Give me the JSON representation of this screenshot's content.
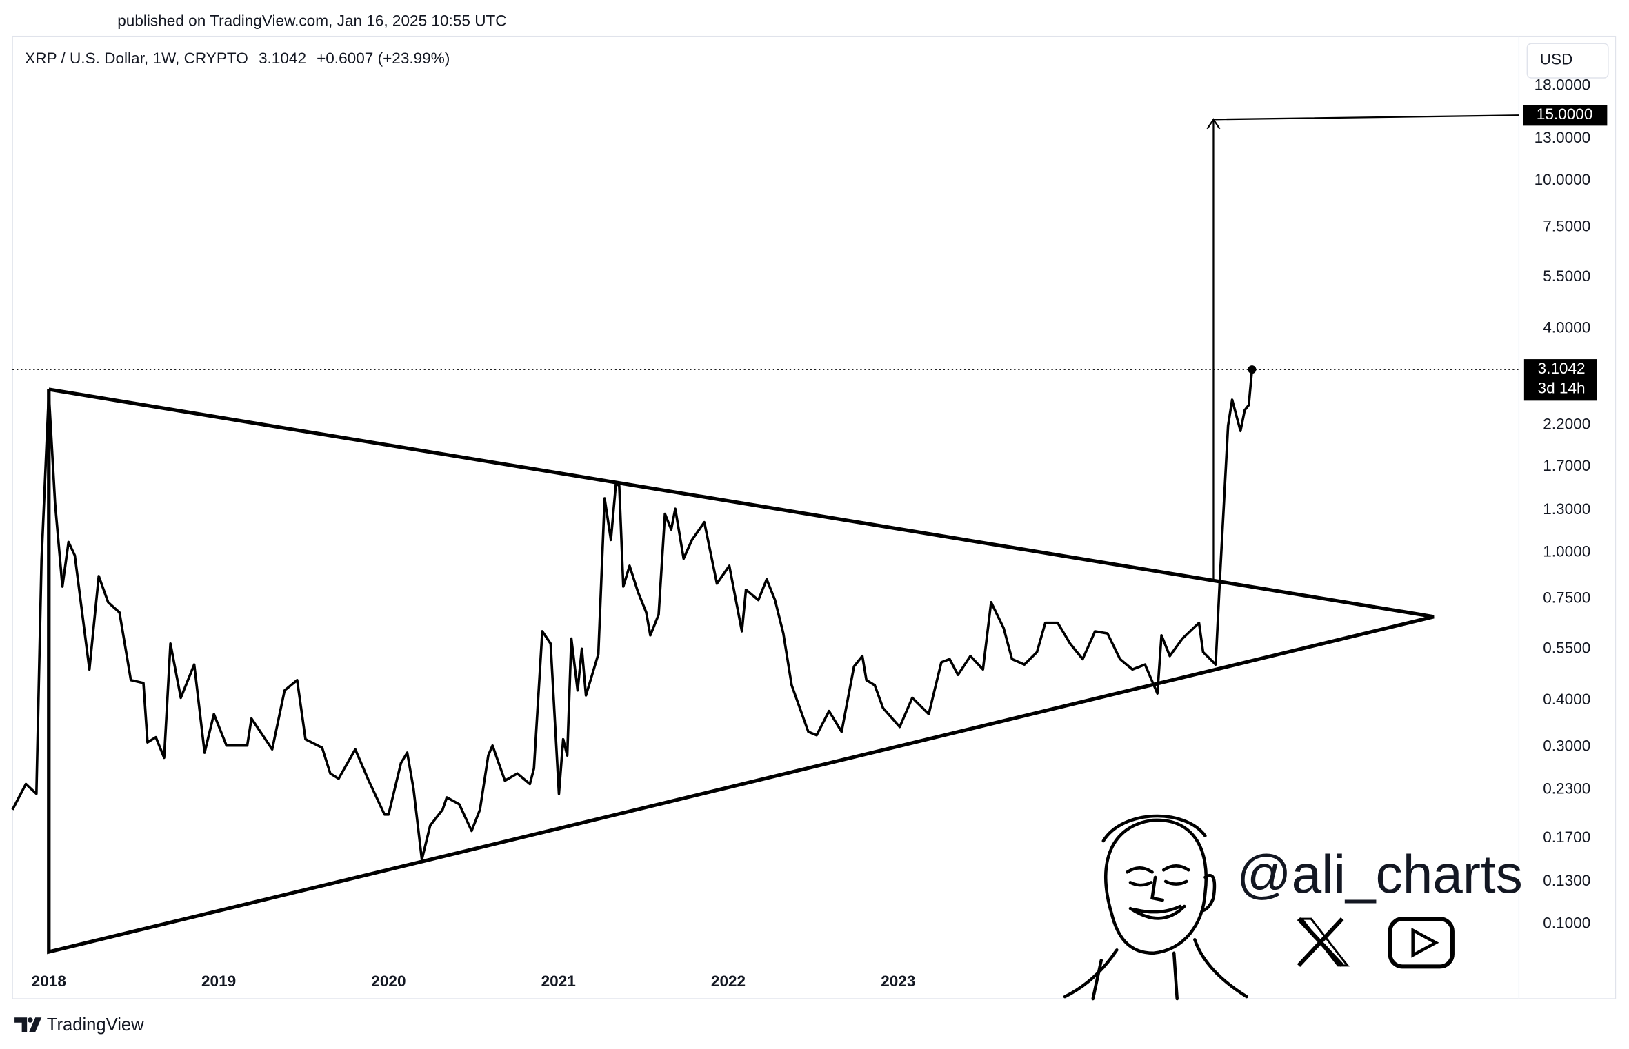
{
  "published": "published on TradingView.com, Jan 16, 2025 10:55 UTC",
  "brand": "TradingView",
  "watermark": "@ali_charts",
  "chart_data": {
    "type": "line",
    "symbol": "XRP / U.S. Dollar, 1W, CRYPTO",
    "change": "+0.6007 (+23.99%)",
    "currency": "USD",
    "countdown": "3d 14h",
    "log_scale": true,
    "grid": false,
    "xlim": [
      2017.786,
      2026.654
    ],
    "ylim": [
      0.0629,
      24.0
    ],
    "xticks": [
      2018,
      2019,
      2020,
      2021,
      2022,
      2023
    ],
    "yticks": [
      {
        "value": 0.1,
        "label": "0.1000"
      },
      {
        "value": 0.13,
        "label": "0.1300"
      },
      {
        "value": 0.17,
        "label": "0.1700"
      },
      {
        "value": 0.23,
        "label": "0.2300"
      },
      {
        "value": 0.3,
        "label": "0.3000"
      },
      {
        "value": 0.4,
        "label": "0.4000"
      },
      {
        "value": 0.55,
        "label": "0.5500"
      },
      {
        "value": 0.75,
        "label": "0.7500"
      },
      {
        "value": 1,
        "label": "1.0000"
      },
      {
        "value": 1.3,
        "label": "1.3000"
      },
      {
        "value": 1.7,
        "label": "1.7000"
      },
      {
        "value": 2.2,
        "label": "2.2000"
      },
      {
        "value": 4,
        "label": "4.0000"
      },
      {
        "value": 5.5,
        "label": "5.5000"
      },
      {
        "value": 7.5,
        "label": "7.5000"
      },
      {
        "value": 10,
        "label": "10.0000"
      },
      {
        "value": 13,
        "label": "13.0000"
      },
      {
        "value": 18,
        "label": "18.0000"
      }
    ],
    "series": [
      {
        "name": "XRP / U.S. Dollar",
        "color": "#000000",
        "x": [
          2017.786,
          2017.865,
          2017.927,
          2017.957,
          2018.0,
          2018.037,
          2018.08,
          2018.116,
          2018.153,
          2018.239,
          2018.294,
          2018.349,
          2018.416,
          2018.483,
          2018.557,
          2018.581,
          2018.63,
          2018.679,
          2018.716,
          2018.777,
          2018.856,
          2018.917,
          2018.972,
          2019.046,
          2019.168,
          2019.193,
          2019.315,
          2019.388,
          2019.462,
          2019.511,
          2019.609,
          2019.657,
          2019.706,
          2019.804,
          2019.878,
          2019.976,
          2020.0,
          2020.073,
          2020.11,
          2020.147,
          2020.196,
          2020.245,
          2020.318,
          2020.343,
          2020.416,
          2020.489,
          2020.538,
          2020.587,
          2020.612,
          2020.685,
          2020.758,
          2020.832,
          2020.856,
          2020.905,
          2020.954,
          2021.003,
          2021.028,
          2021.052,
          2021.076,
          2021.113,
          2021.138,
          2021.162,
          2021.235,
          2021.272,
          2021.309,
          2021.339,
          2021.358,
          2021.382,
          2021.419,
          2021.468,
          2021.517,
          2021.541,
          2021.59,
          2021.627,
          2021.664,
          2021.688,
          2021.737,
          2021.786,
          2021.859,
          2021.933,
          2022.006,
          2022.08,
          2022.104,
          2022.177,
          2022.226,
          2022.275,
          2022.324,
          2022.373,
          2022.471,
          2022.52,
          2022.593,
          2022.667,
          2022.74,
          2022.789,
          2022.813,
          2022.862,
          2022.911,
          2023.009,
          2023.083,
          2023.18,
          2023.254,
          2023.303,
          2023.352,
          2023.425,
          2023.499,
          2023.547,
          2023.621,
          2023.67,
          2023.743,
          2023.817,
          2023.866,
          2023.939,
          2024.012,
          2024.086,
          2024.159,
          2024.232,
          2024.306,
          2024.379,
          2024.453,
          2024.526,
          2024.55,
          2024.599,
          2024.673,
          2024.771,
          2024.795,
          2024.869,
          2024.893,
          2024.942,
          2024.966,
          2025.015,
          2025.04,
          2025.064,
          2025.083
        ],
        "values": [
          0.203,
          0.238,
          0.224,
          0.95,
          2.69,
          1.353,
          0.809,
          1.066,
          0.981,
          0.484,
          0.863,
          0.734,
          0.689,
          0.453,
          0.445,
          0.308,
          0.318,
          0.28,
          0.568,
          0.406,
          0.499,
          0.289,
          0.367,
          0.302,
          0.302,
          0.357,
          0.295,
          0.425,
          0.453,
          0.314,
          0.298,
          0.254,
          0.246,
          0.295,
          0.246,
          0.197,
          0.197,
          0.271,
          0.289,
          0.231,
          0.149,
          0.184,
          0.203,
          0.219,
          0.21,
          0.178,
          0.203,
          0.284,
          0.302,
          0.243,
          0.254,
          0.238,
          0.262,
          0.613,
          0.568,
          0.224,
          0.314,
          0.284,
          0.586,
          0.425,
          0.55,
          0.412,
          0.532,
          1.397,
          1.08,
          1.539,
          1.509,
          0.809,
          0.92,
          0.783,
          0.689,
          0.598,
          0.68,
          1.269,
          1.152,
          1.31,
          0.962,
          1.08,
          1.205,
          0.824,
          0.92,
          0.613,
          0.793,
          0.744,
          0.846,
          0.744,
          0.605,
          0.439,
          0.329,
          0.322,
          0.374,
          0.329,
          0.493,
          0.526,
          0.453,
          0.439,
          0.381,
          0.339,
          0.406,
          0.367,
          0.506,
          0.516,
          0.468,
          0.526,
          0.484,
          0.734,
          0.625,
          0.516,
          0.499,
          0.539,
          0.646,
          0.646,
          0.568,
          0.516,
          0.613,
          0.605,
          0.516,
          0.484,
          0.499,
          0.417,
          0.598,
          0.526,
          0.586,
          0.646,
          0.539,
          0.499,
          0.835,
          2.192,
          2.574,
          2.122,
          2.413,
          2.492,
          3.1042
        ]
      }
    ],
    "triangle": {
      "x": [
        2018.0,
        2026.153,
        2018.0,
        2018.0
      ],
      "values": [
        2.745,
        0.671,
        0.0841,
        2.745
      ]
    },
    "target": {
      "value": 15,
      "label": "15.0000",
      "x": 2024.856,
      "from": 0.84
    }
  }
}
